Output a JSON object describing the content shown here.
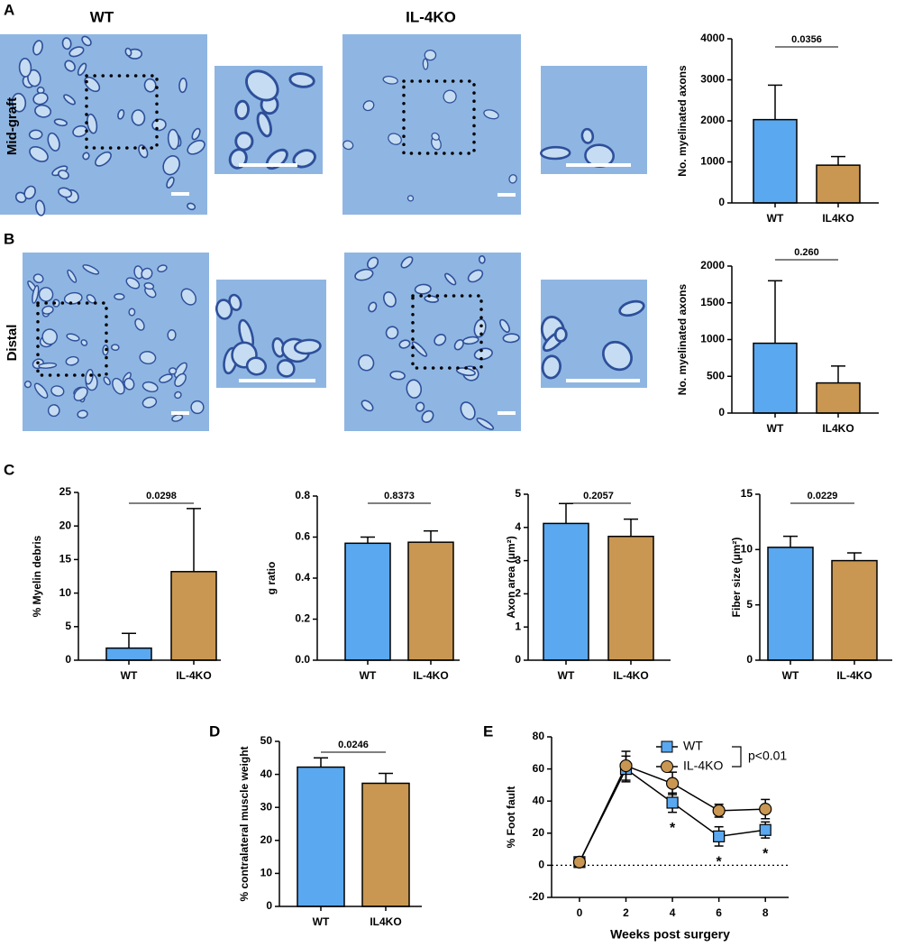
{
  "figure": {
    "panel_labels": [
      "A",
      "B",
      "C",
      "D",
      "E"
    ],
    "column_labels": [
      "WT",
      "IL-4KO"
    ],
    "row_labels": [
      "Mid-graft",
      "Distal"
    ]
  },
  "chart_data": [
    {
      "type": "bar",
      "y_label": "No. myelinated axons",
      "categories": [
        "WT",
        "IL4KO"
      ],
      "values": [
        2030,
        920
      ],
      "errors": [
        840,
        210
      ],
      "colors": [
        "#5aa8ef",
        "#c99752"
      ],
      "ylim": [
        0,
        4000
      ],
      "yticks": [
        0,
        1000,
        2000,
        3000,
        4000
      ],
      "p_value": "0.0356"
    },
    {
      "type": "bar",
      "y_label": "No. myelinated axons",
      "categories": [
        "WT",
        "IL4KO"
      ],
      "values": [
        950,
        410
      ],
      "errors": [
        850,
        230
      ],
      "colors": [
        "#5aa8ef",
        "#c99752"
      ],
      "ylim": [
        0,
        2000
      ],
      "yticks": [
        0,
        500,
        1000,
        1500,
        2000
      ],
      "p_value": "0.260"
    },
    {
      "type": "bar",
      "y_label": "% Myelin debris",
      "categories": [
        "WT",
        "IL-4KO"
      ],
      "values": [
        1.8,
        13.2
      ],
      "errors": [
        2.2,
        9.4
      ],
      "colors": [
        "#5aa8ef",
        "#c99752"
      ],
      "ylim": [
        0,
        25
      ],
      "yticks": [
        0,
        5,
        10,
        15,
        20,
        25
      ],
      "p_value": "0.0298"
    },
    {
      "type": "bar",
      "y_label": "g ratio",
      "categories": [
        "WT",
        "IL-4KO"
      ],
      "values": [
        0.57,
        0.575
      ],
      "errors": [
        0.03,
        0.055
      ],
      "colors": [
        "#5aa8ef",
        "#c99752"
      ],
      "ylim": [
        0,
        0.8
      ],
      "yticks": [
        {
          "value": 0,
          "label": "0.0"
        },
        0.2,
        0.4,
        0.6,
        0.8
      ],
      "p_value": "0.8373"
    },
    {
      "type": "bar",
      "y_label": "Axon area (μm²)",
      "categories": [
        "WT",
        "IL-4KO"
      ],
      "values": [
        4.12,
        3.73
      ],
      "errors": [
        0.6,
        0.52
      ],
      "colors": [
        "#5aa8ef",
        "#c99752"
      ],
      "ylim": [
        0,
        5
      ],
      "yticks": [
        0,
        1,
        2,
        3,
        4,
        5
      ],
      "p_value": "0.2057"
    },
    {
      "type": "bar",
      "y_label": "Fiber size (μm²)",
      "categories": [
        "WT",
        "IL-4KO"
      ],
      "values": [
        10.2,
        9.0
      ],
      "errors": [
        1.0,
        0.7
      ],
      "colors": [
        "#5aa8ef",
        "#c99752"
      ],
      "ylim": [
        0,
        15
      ],
      "yticks": [
        0,
        5,
        10,
        15
      ],
      "p_value": "0.0229"
    },
    {
      "type": "bar",
      "y_label": "% contralateral muscle weight",
      "categories": [
        "WT",
        "IL4KO"
      ],
      "values": [
        42.2,
        37.3
      ],
      "errors": [
        2.8,
        3.0
      ],
      "colors": [
        "#5aa8ef",
        "#c99752"
      ],
      "ylim": [
        0,
        50
      ],
      "yticks": [
        0,
        10,
        20,
        30,
        40,
        50
      ],
      "p_value": "0.0246"
    },
    {
      "type": "line",
      "x_label": "Weeks post surgery",
      "y_label": "% Foot fault",
      "x": [
        0,
        2,
        4,
        6,
        8
      ],
      "series": [
        {
          "name": "WT",
          "color": "#5aa8ef",
          "marker": "square",
          "values": [
            2,
            60,
            39,
            18,
            22
          ],
          "errors": [
            1,
            8,
            6,
            6,
            5
          ]
        },
        {
          "name": "IL-4KO",
          "color": "#c99752",
          "marker": "circle",
          "values": [
            2,
            62,
            51,
            34,
            35
          ],
          "errors": [
            1,
            9,
            7,
            4,
            6
          ]
        }
      ],
      "xlim": [
        -1.2,
        9
      ],
      "xticks": [
        0,
        2,
        4,
        6,
        8
      ],
      "ylim": [
        -20,
        80
      ],
      "yticks": [
        -20,
        0,
        20,
        40,
        60,
        80
      ],
      "p_value": "p<0.01",
      "significance_marks": {
        "text": "*",
        "x": [
          4,
          6,
          8
        ]
      }
    }
  ]
}
